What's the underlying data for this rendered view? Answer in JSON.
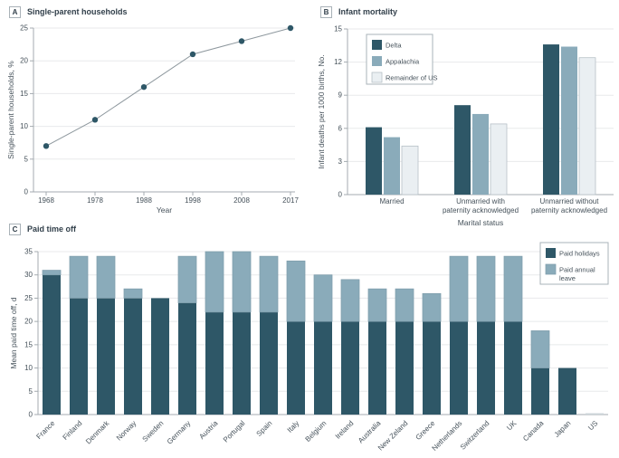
{
  "figure": {
    "panels": [
      {
        "label": "A",
        "title": "Single-parent households"
      },
      {
        "label": "B",
        "title": "Infant mortality"
      },
      {
        "label": "C",
        "title": "Paid time off"
      }
    ]
  },
  "colors": {
    "dark_teal": "#2e5767",
    "medium_blue": "#8aabba",
    "medium_border": "#7f9dac",
    "pale_blue": "#eaeff2",
    "pale_border": "#b3bdc4",
    "line_gray": "#8e989e",
    "grid": "#e8eaeb",
    "axis": "#a4abb0",
    "text": "#45515a",
    "title_text": "#313f4a",
    "legend_border": "#aab3b9"
  },
  "chart_data": [
    {
      "id": "A",
      "type": "line",
      "title": "Single-parent households",
      "x": [
        "1968",
        "1978",
        "1988",
        "1998",
        "2008",
        "2017"
      ],
      "values": [
        7,
        11,
        16,
        21,
        23,
        25
      ],
      "xlabel": "Year",
      "ylabel": "Single-parent households, %",
      "ylim": [
        0,
        25
      ],
      "yticks": [
        0,
        5,
        10,
        15,
        20,
        25
      ],
      "grid": true,
      "marker": "circle"
    },
    {
      "id": "B",
      "type": "bar",
      "title": "Infant mortality",
      "categories": [
        "Married",
        "Unmarried with\npaternity acknowledged",
        "Unmarried without\npaternity acknowledged"
      ],
      "series": [
        {
          "name": "Delta",
          "values": [
            6.1,
            8.1,
            13.6
          ]
        },
        {
          "name": "Appalachia",
          "values": [
            5.2,
            7.3,
            13.4
          ]
        },
        {
          "name": "Remainder of US",
          "values": [
            4.4,
            6.4,
            12.4
          ]
        }
      ],
      "xlabel": "Marital status",
      "ylabel": "Infant deaths per 1000 births, No.",
      "ylim": [
        0,
        15
      ],
      "yticks": [
        0,
        3,
        6,
        9,
        12,
        15
      ],
      "grid": true,
      "legend_position": "upper left"
    },
    {
      "id": "C",
      "type": "stacked-bar",
      "title": "Paid time off",
      "categories": [
        "France",
        "Finland",
        "Denmark",
        "Norway",
        "Sweden",
        "Germany",
        "Austria",
        "Portugal",
        "Spain",
        "Italy",
        "Belgium",
        "Ireland",
        "Australia",
        "New Zeland",
        "Greece",
        "Netherlands",
        "Switzerland",
        "UK",
        "Canada",
        "Japan",
        "US"
      ],
      "series": [
        {
          "name": "Paid holidays",
          "values": [
            30,
            25,
            25,
            25,
            25,
            24,
            22,
            22,
            22,
            20,
            20,
            20,
            20,
            20,
            20,
            20,
            20,
            20,
            10,
            10,
            0
          ]
        },
        {
          "name": "Paid annual leave",
          "values": [
            1,
            9,
            9,
            2,
            0,
            10,
            13,
            13,
            12,
            13,
            10,
            9,
            7,
            7,
            6,
            14,
            14,
            14,
            8,
            0,
            0
          ]
        }
      ],
      "xlabel": "",
      "ylabel": "Mean paid time off, d",
      "ylim": [
        0,
        35
      ],
      "yticks": [
        0,
        5,
        10,
        15,
        20,
        25,
        30,
        35
      ],
      "grid": true,
      "legend_position": "upper right"
    }
  ]
}
